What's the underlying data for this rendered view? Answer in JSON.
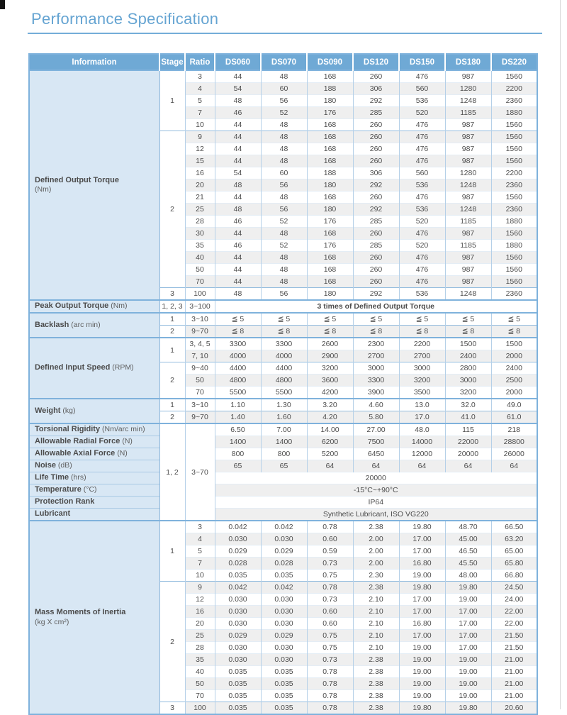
{
  "page": {
    "title": "Performance Specification"
  },
  "colors": {
    "title": "#65a4d2",
    "header_bg": "#6fa9d5",
    "info_bg": "#d8e7f4",
    "stripe": "#efefef",
    "border_strong": "#7fb2dc",
    "border_cell": "#b5d0e8"
  },
  "table": {
    "headers": [
      "Information",
      "Stage",
      "Ratio",
      "DS060",
      "DS070",
      "DS090",
      "DS120",
      "DS150",
      "DS180",
      "DS220"
    ],
    "sections": [
      {
        "label": "Defined Output Torque",
        "unit": "(Nm)",
        "inline_unit": false,
        "groups": [
          {
            "stage": "1",
            "rows": [
              {
                "ratio": "3",
                "values": [
                  "44",
                  "48",
                  "168",
                  "260",
                  "476",
                  "987",
                  "1560"
                ]
              },
              {
                "ratio": "4",
                "values": [
                  "54",
                  "60",
                  "188",
                  "306",
                  "560",
                  "1280",
                  "2200"
                ]
              },
              {
                "ratio": "5",
                "values": [
                  "48",
                  "56",
                  "180",
                  "292",
                  "536",
                  "1248",
                  "2360"
                ]
              },
              {
                "ratio": "7",
                "values": [
                  "46",
                  "52",
                  "176",
                  "285",
                  "520",
                  "1185",
                  "1880"
                ]
              },
              {
                "ratio": "10",
                "values": [
                  "44",
                  "48",
                  "168",
                  "260",
                  "476",
                  "987",
                  "1560"
                ]
              }
            ]
          },
          {
            "stage": "2",
            "rows": [
              {
                "ratio": "9",
                "values": [
                  "44",
                  "48",
                  "168",
                  "260",
                  "476",
                  "987",
                  "1560"
                ]
              },
              {
                "ratio": "12",
                "values": [
                  "44",
                  "48",
                  "168",
                  "260",
                  "476",
                  "987",
                  "1560"
                ]
              },
              {
                "ratio": "15",
                "values": [
                  "44",
                  "48",
                  "168",
                  "260",
                  "476",
                  "987",
                  "1560"
                ]
              },
              {
                "ratio": "16",
                "values": [
                  "54",
                  "60",
                  "188",
                  "306",
                  "560",
                  "1280",
                  "2200"
                ]
              },
              {
                "ratio": "20",
                "values": [
                  "48",
                  "56",
                  "180",
                  "292",
                  "536",
                  "1248",
                  "2360"
                ]
              },
              {
                "ratio": "21",
                "values": [
                  "44",
                  "48",
                  "168",
                  "260",
                  "476",
                  "987",
                  "1560"
                ]
              },
              {
                "ratio": "25",
                "values": [
                  "48",
                  "56",
                  "180",
                  "292",
                  "536",
                  "1248",
                  "2360"
                ]
              },
              {
                "ratio": "28",
                "values": [
                  "46",
                  "52",
                  "176",
                  "285",
                  "520",
                  "1185",
                  "1880"
                ]
              },
              {
                "ratio": "30",
                "values": [
                  "44",
                  "48",
                  "168",
                  "260",
                  "476",
                  "987",
                  "1560"
                ]
              },
              {
                "ratio": "35",
                "values": [
                  "46",
                  "52",
                  "176",
                  "285",
                  "520",
                  "1185",
                  "1880"
                ]
              },
              {
                "ratio": "40",
                "values": [
                  "44",
                  "48",
                  "168",
                  "260",
                  "476",
                  "987",
                  "1560"
                ]
              },
              {
                "ratio": "50",
                "values": [
                  "44",
                  "48",
                  "168",
                  "260",
                  "476",
                  "987",
                  "1560"
                ]
              },
              {
                "ratio": "70",
                "values": [
                  "44",
                  "48",
                  "168",
                  "260",
                  "476",
                  "987",
                  "1560"
                ]
              }
            ]
          },
          {
            "stage": "3",
            "rows": [
              {
                "ratio": "100",
                "values": [
                  "48",
                  "56",
                  "180",
                  "292",
                  "536",
                  "1248",
                  "2360"
                ]
              }
            ]
          }
        ]
      },
      {
        "label": "Peak Output Torque",
        "unit": "(Nm)",
        "inline_unit": true,
        "groups": [
          {
            "stage": "1, 2, 3",
            "rows": [
              {
                "ratio": "3~100",
                "span": "3 times of Defined Output Torque",
                "bold": true
              }
            ]
          }
        ]
      },
      {
        "label": "Backlash",
        "unit": "(arc min)",
        "inline_unit": true,
        "groups": [
          {
            "stage": "1",
            "rows": [
              {
                "ratio": "3~10",
                "values": [
                  "≦ 5",
                  "≦ 5",
                  "≦ 5",
                  "≦ 5",
                  "≦ 5",
                  "≦ 5",
                  "≦ 5"
                ]
              }
            ]
          },
          {
            "stage": "2",
            "rows": [
              {
                "ratio": "9~70",
                "values": [
                  "≦ 8",
                  "≦ 8",
                  "≦ 8",
                  "≦ 8",
                  "≦ 8",
                  "≦ 8",
                  "≦ 8"
                ]
              }
            ]
          }
        ]
      },
      {
        "label": "Defined Input Speed",
        "unit": "(RPM)",
        "inline_unit": true,
        "groups": [
          {
            "stage": "1",
            "rows": [
              {
                "ratio": "3, 4, 5",
                "values": [
                  "3300",
                  "3300",
                  "2600",
                  "2300",
                  "2200",
                  "1500",
                  "1500"
                ]
              },
              {
                "ratio": "7, 10",
                "values": [
                  "4000",
                  "4000",
                  "2900",
                  "2700",
                  "2700",
                  "2400",
                  "2000"
                ]
              }
            ]
          },
          {
            "stage": "2",
            "rows": [
              {
                "ratio": "9~40",
                "values": [
                  "4400",
                  "4400",
                  "3200",
                  "3000",
                  "3000",
                  "2800",
                  "2400"
                ]
              },
              {
                "ratio": "50",
                "values": [
                  "4800",
                  "4800",
                  "3600",
                  "3300",
                  "3200",
                  "3000",
                  "2500"
                ]
              },
              {
                "ratio": "70",
                "values": [
                  "5500",
                  "5500",
                  "4200",
                  "3900",
                  "3500",
                  "3200",
                  "2000"
                ]
              }
            ]
          }
        ]
      },
      {
        "label": "Weight",
        "unit": "(kg)",
        "inline_unit": true,
        "groups": [
          {
            "stage": "1",
            "rows": [
              {
                "ratio": "3~10",
                "values": [
                  "1.10",
                  "1.30",
                  "3.20",
                  "4.60",
                  "13.0",
                  "32.0",
                  "49.0"
                ]
              }
            ]
          },
          {
            "stage": "2",
            "rows": [
              {
                "ratio": "9~70",
                "values": [
                  "1.40",
                  "1.60",
                  "4.20",
                  "5.80",
                  "17.0",
                  "41.0",
                  "61.0"
                ]
              }
            ]
          }
        ]
      },
      {
        "type": "multi",
        "stage": "1, 2",
        "ratio": "3~70",
        "rows": [
          {
            "label": "Torsional Rigidity",
            "unit": "(Nm/arc min)",
            "values": [
              "6.50",
              "7.00",
              "14.00",
              "27.00",
              "48.0",
              "115",
              "218"
            ]
          },
          {
            "label": "Allowable Radial Force",
            "unit": "(N)",
            "values": [
              "1400",
              "1400",
              "6200",
              "7500",
              "14000",
              "22000",
              "28800"
            ]
          },
          {
            "label": "Allowable Axial Force",
            "unit": "(N)",
            "values": [
              "800",
              "800",
              "5200",
              "6450",
              "12000",
              "20000",
              "26000"
            ]
          },
          {
            "label": "Noise",
            "unit": "(dB)",
            "values": [
              "65",
              "65",
              "64",
              "64",
              "64",
              "64",
              "64"
            ]
          },
          {
            "label": "Life Time",
            "unit": "(hrs)",
            "span": "20000"
          },
          {
            "label": "Temperature",
            "unit": "(°C)",
            "span": "-15°C~+90°C"
          },
          {
            "label": "Protection Rank",
            "unit": "",
            "span": "IP64"
          },
          {
            "label": "Lubricant",
            "unit": "",
            "span": "Synthetic Lubricant, ISO VG220"
          }
        ]
      },
      {
        "label": "Mass Moments of Inertia",
        "unit": "(kg X cm²)",
        "inline_unit": false,
        "groups": [
          {
            "stage": "1",
            "rows": [
              {
                "ratio": "3",
                "values": [
                  "0.042",
                  "0.042",
                  "0.78",
                  "2.38",
                  "19.80",
                  "48.70",
                  "66.50"
                ]
              },
              {
                "ratio": "4",
                "values": [
                  "0.030",
                  "0.030",
                  "0.60",
                  "2.00",
                  "17.00",
                  "45.00",
                  "63.20"
                ]
              },
              {
                "ratio": "5",
                "values": [
                  "0.029",
                  "0.029",
                  "0.59",
                  "2.00",
                  "17.00",
                  "46.50",
                  "65.00"
                ]
              },
              {
                "ratio": "7",
                "values": [
                  "0.028",
                  "0.028",
                  "0.73",
                  "2.00",
                  "16.80",
                  "45.50",
                  "65.80"
                ]
              },
              {
                "ratio": "10",
                "values": [
                  "0.035",
                  "0.035",
                  "0.75",
                  "2.30",
                  "19.00",
                  "48.00",
                  "66.80"
                ]
              }
            ]
          },
          {
            "stage": "2",
            "rows": [
              {
                "ratio": "9",
                "values": [
                  "0.042",
                  "0.042",
                  "0.78",
                  "2.38",
                  "19.80",
                  "19.80",
                  "24.50"
                ]
              },
              {
                "ratio": "12",
                "values": [
                  "0.030",
                  "0.030",
                  "0.73",
                  "2.10",
                  "17.00",
                  "19.00",
                  "24.00"
                ]
              },
              {
                "ratio": "16",
                "values": [
                  "0.030",
                  "0.030",
                  "0.60",
                  "2.10",
                  "17.00",
                  "17.00",
                  "22.00"
                ]
              },
              {
                "ratio": "20",
                "values": [
                  "0.030",
                  "0.030",
                  "0.60",
                  "2.10",
                  "16.80",
                  "17.00",
                  "22.00"
                ]
              },
              {
                "ratio": "25",
                "values": [
                  "0.029",
                  "0.029",
                  "0.75",
                  "2.10",
                  "17.00",
                  "17.00",
                  "21.50"
                ]
              },
              {
                "ratio": "28",
                "values": [
                  "0.030",
                  "0.030",
                  "0.75",
                  "2.10",
                  "19.00",
                  "17.00",
                  "21.50"
                ]
              },
              {
                "ratio": "35",
                "values": [
                  "0.030",
                  "0.030",
                  "0.73",
                  "2.38",
                  "19.00",
                  "19.00",
                  "21.00"
                ]
              },
              {
                "ratio": "40",
                "values": [
                  "0.035",
                  "0.035",
                  "0.78",
                  "2.38",
                  "19.00",
                  "19.00",
                  "21.00"
                ]
              },
              {
                "ratio": "50",
                "values": [
                  "0.035",
                  "0.035",
                  "0.78",
                  "2.38",
                  "19.00",
                  "19.00",
                  "21.00"
                ]
              },
              {
                "ratio": "70",
                "values": [
                  "0.035",
                  "0.035",
                  "0.78",
                  "2.38",
                  "19.00",
                  "19.00",
                  "21.00"
                ]
              }
            ]
          },
          {
            "stage": "3",
            "rows": [
              {
                "ratio": "100",
                "values": [
                  "0.035",
                  "0.035",
                  "0.78",
                  "2.38",
                  "19.80",
                  "19.80",
                  "20.60"
                ]
              }
            ]
          }
        ]
      }
    ]
  }
}
